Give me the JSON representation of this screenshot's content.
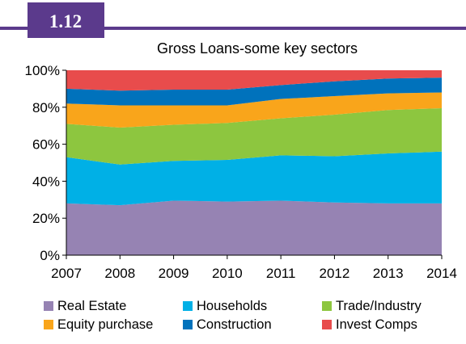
{
  "badge": "1.12",
  "chart_data": {
    "type": "area",
    "stacked": true,
    "title": "Gross Loans-some key sectors",
    "xlabel": "",
    "ylabel": "",
    "x": [
      "2007",
      "2008",
      "2009",
      "2010",
      "2011",
      "2012",
      "2013",
      "2014"
    ],
    "ylim": [
      0,
      100
    ],
    "yticks": [
      "0%",
      "20%",
      "40%",
      "60%",
      "80%",
      "100%"
    ],
    "grid": false,
    "legend_position": "bottom",
    "series": [
      {
        "name": "Real Estate",
        "color": "#9683b3",
        "values": [
          28,
          27,
          29.5,
          29,
          29.5,
          28.5,
          28,
          28
        ]
      },
      {
        "name": "Households",
        "color": "#00b0e6",
        "values": [
          25,
          22,
          21.5,
          22.5,
          24.5,
          25,
          27,
          28
        ]
      },
      {
        "name": "Trade/Industry",
        "color": "#8dc63f",
        "values": [
          18,
          20,
          19.5,
          20,
          20,
          22.5,
          23.5,
          23.5
        ]
      },
      {
        "name": "Equity purchase",
        "color": "#f9a51b",
        "values": [
          11,
          12,
          10.5,
          9.5,
          10.5,
          10,
          9,
          8.5
        ]
      },
      {
        "name": "Construction",
        "color": "#0072bc",
        "values": [
          8,
          8,
          8.5,
          8.5,
          7.5,
          8,
          8,
          8
        ]
      },
      {
        "name": "Invest Comps",
        "color": "#e84c4c",
        "values": [
          10,
          11,
          10.5,
          10.5,
          8,
          6,
          4.5,
          4
        ]
      }
    ],
    "frame_color": "#5b3a8c"
  }
}
